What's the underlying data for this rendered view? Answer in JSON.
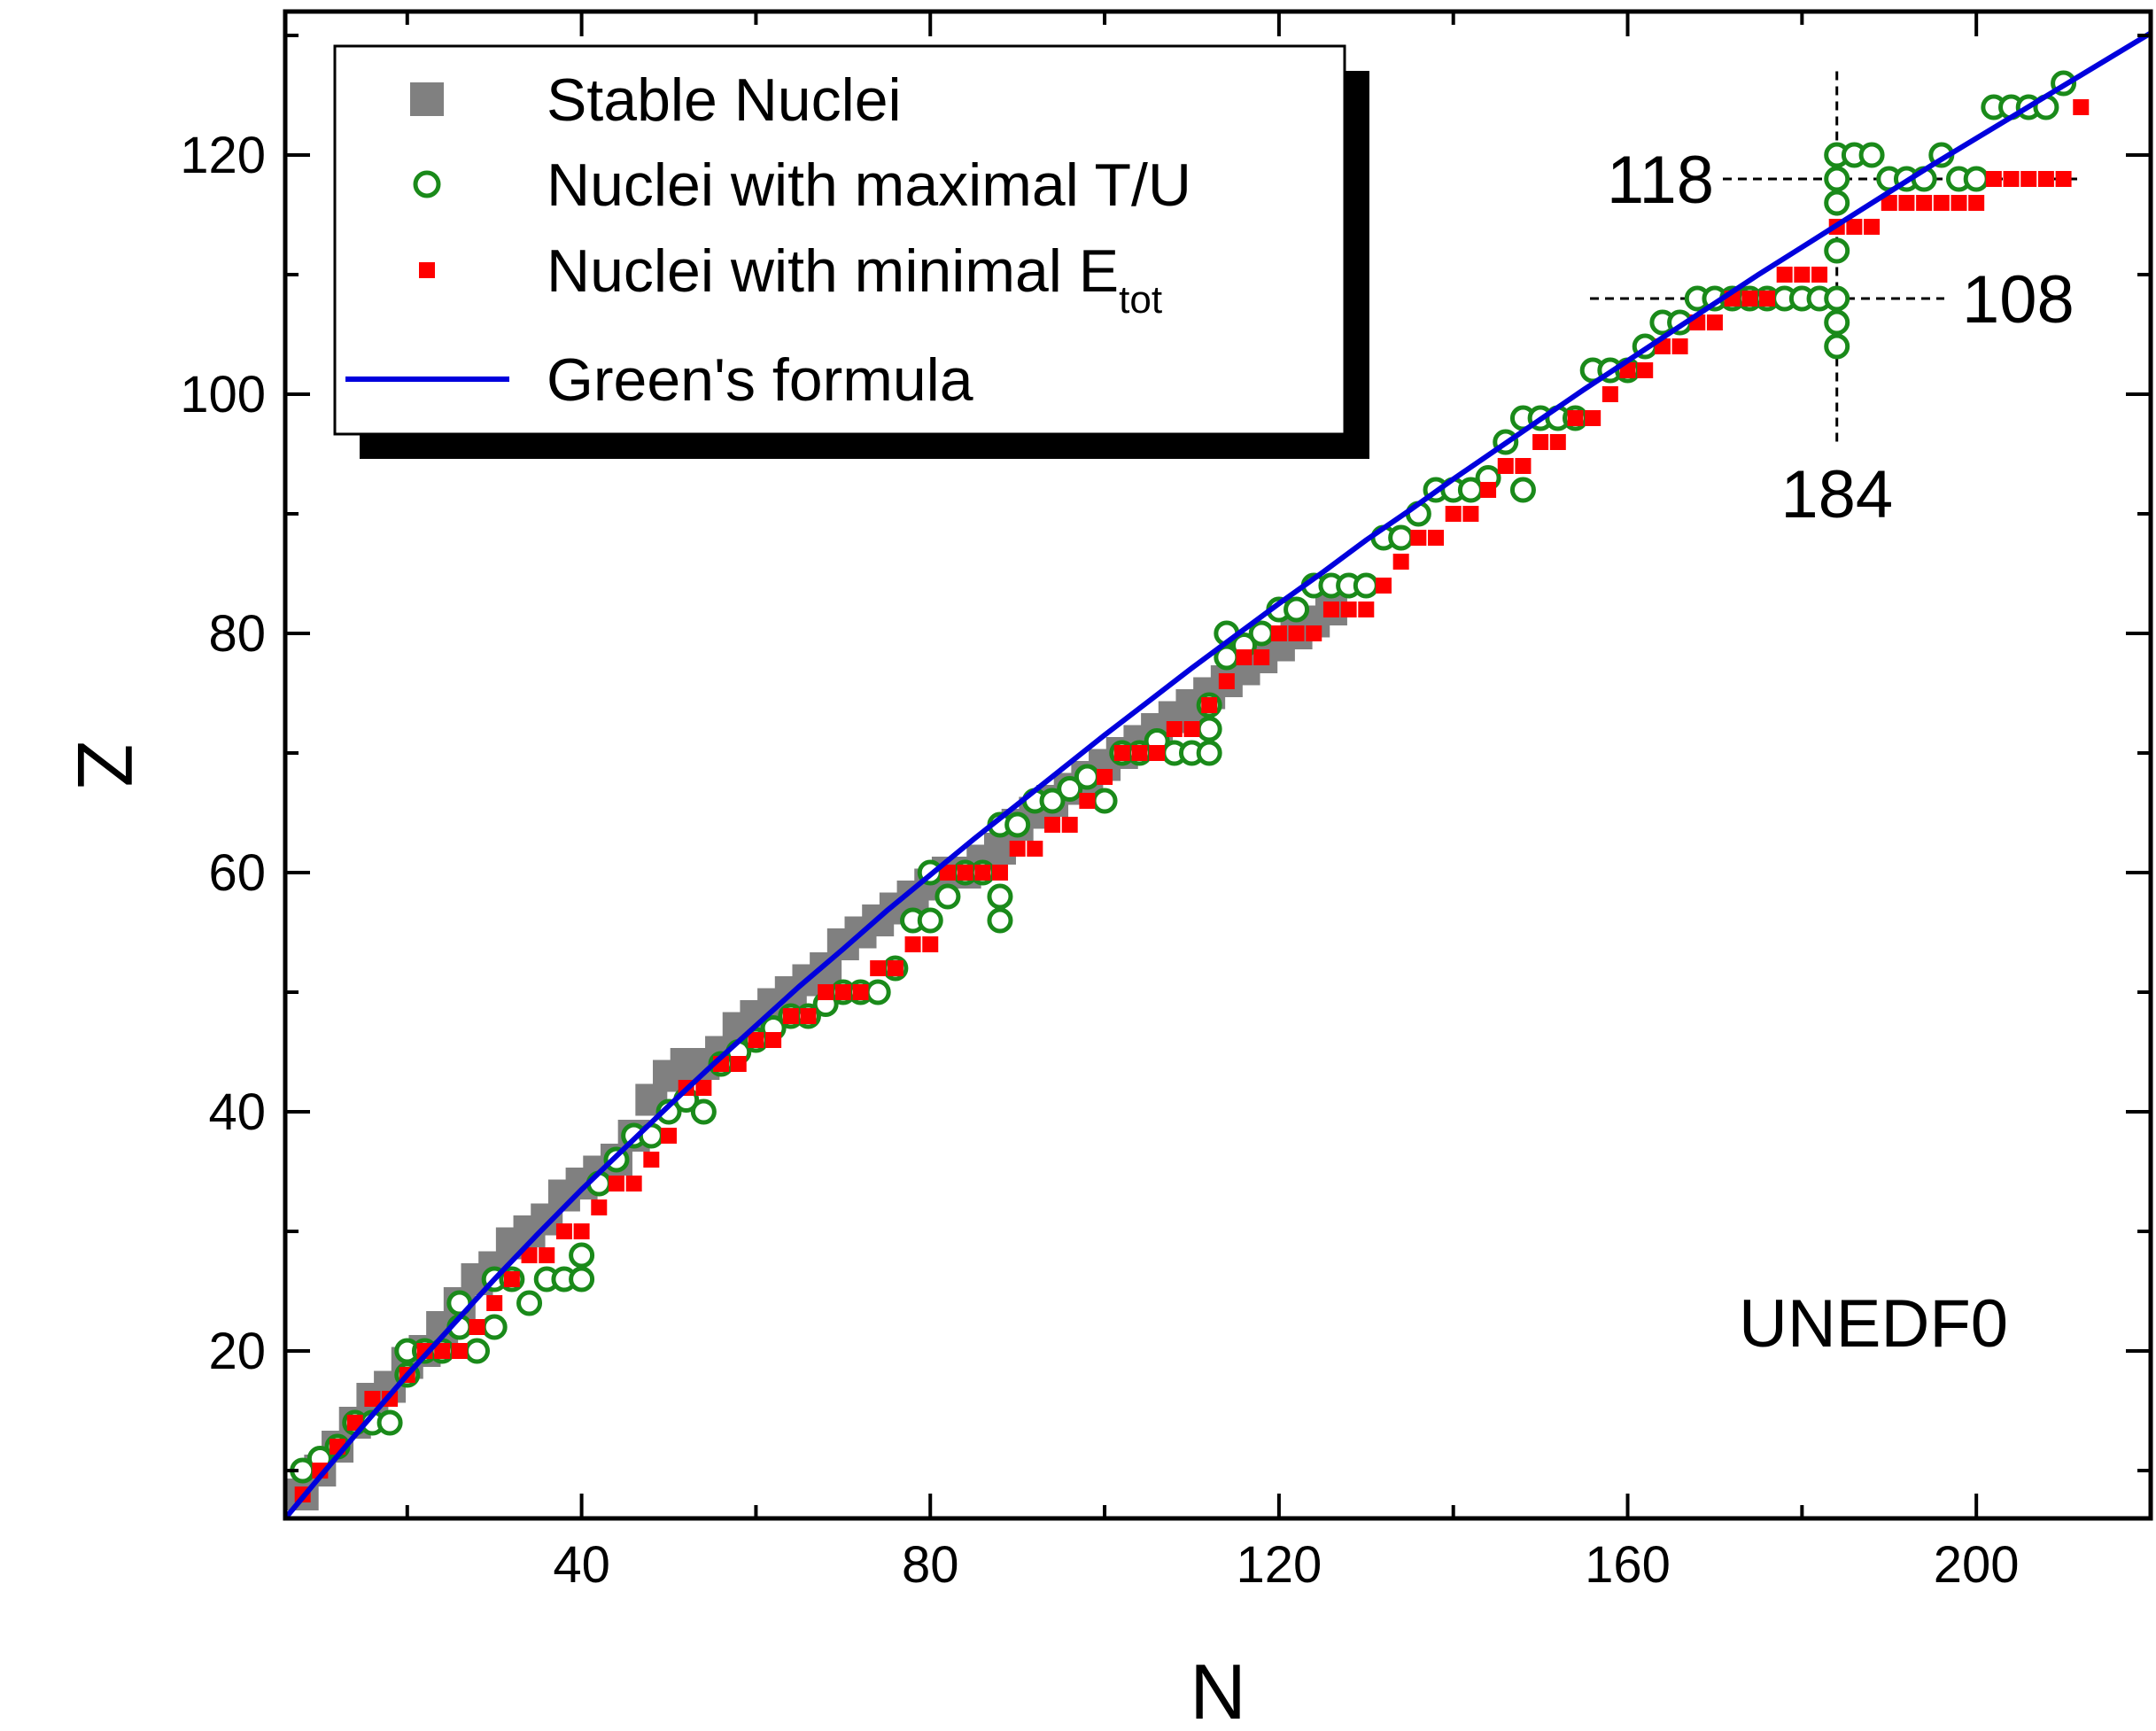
{
  "chart_data": {
    "type": "scatter",
    "xlabel": "N",
    "ylabel": "Z",
    "xlim": [
      6,
      220
    ],
    "ylim": [
      6,
      132
    ],
    "x_ticks": [
      40,
      80,
      120,
      160,
      200
    ],
    "y_ticks": [
      20,
      40,
      60,
      80,
      100,
      120
    ],
    "grid": false,
    "legend_position": "top-left",
    "annotation": "UNEDF0",
    "reference_lines": [
      {
        "orientation": "horizontal",
        "value": 118,
        "label": "118"
      },
      {
        "orientation": "horizontal",
        "value": 108,
        "label": "108"
      },
      {
        "orientation": "vertical",
        "value": 184,
        "label": "184"
      }
    ],
    "series": [
      {
        "name": "Stable Nuclei",
        "marker": "square",
        "color": "#808080",
        "x": [
          8,
          10,
          12,
          14,
          16,
          18,
          20,
          22,
          24,
          26,
          28,
          30,
          32,
          34,
          36,
          38,
          40,
          42,
          44,
          46,
          48,
          50,
          52,
          54,
          56,
          58,
          60,
          62,
          64,
          66,
          68,
          70,
          72,
          74,
          76,
          78,
          80,
          82,
          84,
          86,
          88,
          90,
          92,
          94,
          96,
          98,
          100,
          102,
          104,
          106,
          108,
          110,
          112,
          114,
          116,
          118,
          120,
          122,
          124,
          126
        ],
        "y": [
          8,
          10,
          12,
          14,
          16,
          17,
          19,
          20,
          22,
          24,
          26,
          27,
          29,
          30,
          31,
          33,
          34,
          35,
          36,
          38,
          41,
          43,
          44,
          44,
          45,
          47,
          48,
          49,
          50,
          51,
          52,
          54,
          55,
          56,
          57,
          58,
          59,
          60,
          60,
          61,
          62,
          64,
          65,
          66,
          67,
          68,
          69,
          70,
          71,
          72,
          73,
          74,
          75,
          76,
          77,
          78,
          79,
          80,
          81,
          82
        ]
      },
      {
        "name": "Nuclei with maximal T/U",
        "marker": "open-circle",
        "color": "#1a8a1a",
        "x": [
          8,
          10,
          12,
          14,
          16,
          18,
          20,
          20,
          22,
          24,
          26,
          26,
          28,
          30,
          30,
          32,
          34,
          36,
          38,
          40,
          40,
          42,
          44,
          46,
          48,
          50,
          52,
          54,
          56,
          58,
          60,
          62,
          64,
          66,
          68,
          70,
          72,
          74,
          76,
          78,
          80,
          80,
          82,
          84,
          86,
          88,
          88,
          88,
          90,
          92,
          94,
          96,
          98,
          100,
          102,
          104,
          106,
          108,
          110,
          112,
          112,
          112,
          114,
          114,
          116,
          118,
          120,
          122,
          124,
          126,
          128,
          130,
          132,
          134,
          136,
          138,
          140,
          142,
          144,
          146,
          148,
          148,
          150,
          152,
          154,
          156,
          158,
          160,
          162,
          164,
          166,
          168,
          170,
          172,
          174,
          176,
          178,
          180,
          182,
          184,
          184,
          184,
          184,
          184,
          184,
          184,
          186,
          188,
          190,
          192,
          194,
          196,
          198,
          200,
          202,
          204,
          206,
          208,
          210
        ],
        "y": [
          10,
          11,
          12,
          14,
          14,
          14,
          20,
          18,
          20,
          20,
          24,
          22,
          20,
          22,
          26,
          26,
          24,
          26,
          26,
          26,
          28,
          34,
          36,
          38,
          38,
          40,
          41,
          40,
          44,
          45,
          46,
          47,
          48,
          48,
          49,
          50,
          50,
          50,
          52,
          56,
          56,
          60,
          58,
          60,
          60,
          56,
          58,
          64,
          64,
          66,
          66,
          67,
          68,
          66,
          70,
          70,
          71,
          70,
          70,
          70,
          72,
          74,
          80,
          78,
          79,
          80,
          82,
          82,
          84,
          84,
          84,
          84,
          88,
          88,
          90,
          92,
          92,
          92,
          93,
          96,
          98,
          92,
          98,
          98,
          98,
          102,
          102,
          102,
          104,
          106,
          106,
          108,
          108,
          108,
          108,
          108,
          108,
          108,
          108,
          104,
          106,
          108,
          112,
          116,
          118,
          120,
          120,
          120,
          118,
          118,
          118,
          120,
          118,
          118,
          124,
          124,
          124,
          124,
          126
        ]
      },
      {
        "name": "Nuclei with minimal E",
        "name_subscript": "tot",
        "marker": "filled-square",
        "color": "#ff0000",
        "x": [
          8,
          10,
          12,
          14,
          16,
          18,
          20,
          22,
          24,
          26,
          28,
          30,
          32,
          34,
          36,
          38,
          40,
          42,
          44,
          46,
          48,
          50,
          52,
          54,
          56,
          58,
          60,
          62,
          64,
          66,
          68,
          70,
          72,
          74,
          76,
          78,
          80,
          82,
          84,
          86,
          88,
          90,
          92,
          94,
          96,
          98,
          100,
          102,
          104,
          106,
          108,
          110,
          112,
          114,
          116,
          118,
          120,
          122,
          124,
          126,
          128,
          130,
          132,
          134,
          136,
          138,
          140,
          142,
          144,
          146,
          148,
          150,
          152,
          154,
          156,
          158,
          160,
          162,
          164,
          166,
          168,
          170,
          172,
          174,
          176,
          178,
          180,
          182,
          184,
          186,
          188,
          190,
          192,
          194,
          196,
          198,
          200,
          202,
          204,
          206,
          208,
          210,
          212
        ],
        "y": [
          8,
          10,
          12,
          14,
          16,
          16,
          18,
          20,
          20,
          20,
          22,
          24,
          26,
          28,
          28,
          30,
          30,
          32,
          34,
          34,
          36,
          38,
          42,
          42,
          44,
          44,
          46,
          46,
          48,
          48,
          50,
          50,
          50,
          52,
          52,
          54,
          54,
          60,
          60,
          60,
          60,
          62,
          62,
          64,
          64,
          66,
          68,
          70,
          70,
          70,
          72,
          72,
          74,
          76,
          78,
          78,
          80,
          80,
          80,
          82,
          82,
          82,
          84,
          86,
          88,
          88,
          90,
          90,
          92,
          94,
          94,
          96,
          96,
          98,
          98,
          100,
          102,
          102,
          104,
          104,
          106,
          106,
          108,
          108,
          108,
          110,
          110,
          110,
          114,
          114,
          114,
          116,
          116,
          116,
          116,
          116,
          116,
          118,
          118,
          118,
          118,
          118,
          124
        ]
      },
      {
        "name": "Green's formula",
        "marker": "line",
        "color": "#0000dd",
        "x": [
          6,
          10,
          15,
          20,
          25,
          30,
          35,
          40,
          45,
          50,
          55,
          60,
          65,
          70,
          75,
          80,
          85,
          90,
          95,
          100,
          105,
          110,
          115,
          120,
          125,
          130,
          135,
          140,
          145,
          150,
          155,
          160,
          165,
          170,
          175,
          180,
          185,
          190,
          195,
          200,
          205,
          210,
          215,
          220
        ],
        "y": [
          6.0,
          9.5,
          13.8,
          18.0,
          22.0,
          26.0,
          29.8,
          33.5,
          37.0,
          40.5,
          43.9,
          47.2,
          50.5,
          53.6,
          56.8,
          59.8,
          62.8,
          65.7,
          68.6,
          71.5,
          74.3,
          77.1,
          79.8,
          82.5,
          85.1,
          87.8,
          90.3,
          92.9,
          95.4,
          97.9,
          100.4,
          102.8,
          105.2,
          107.6,
          110.0,
          112.3,
          114.6,
          116.9,
          119.2,
          121.4,
          123.6,
          125.8,
          128.0,
          130.2
        ]
      }
    ]
  }
}
